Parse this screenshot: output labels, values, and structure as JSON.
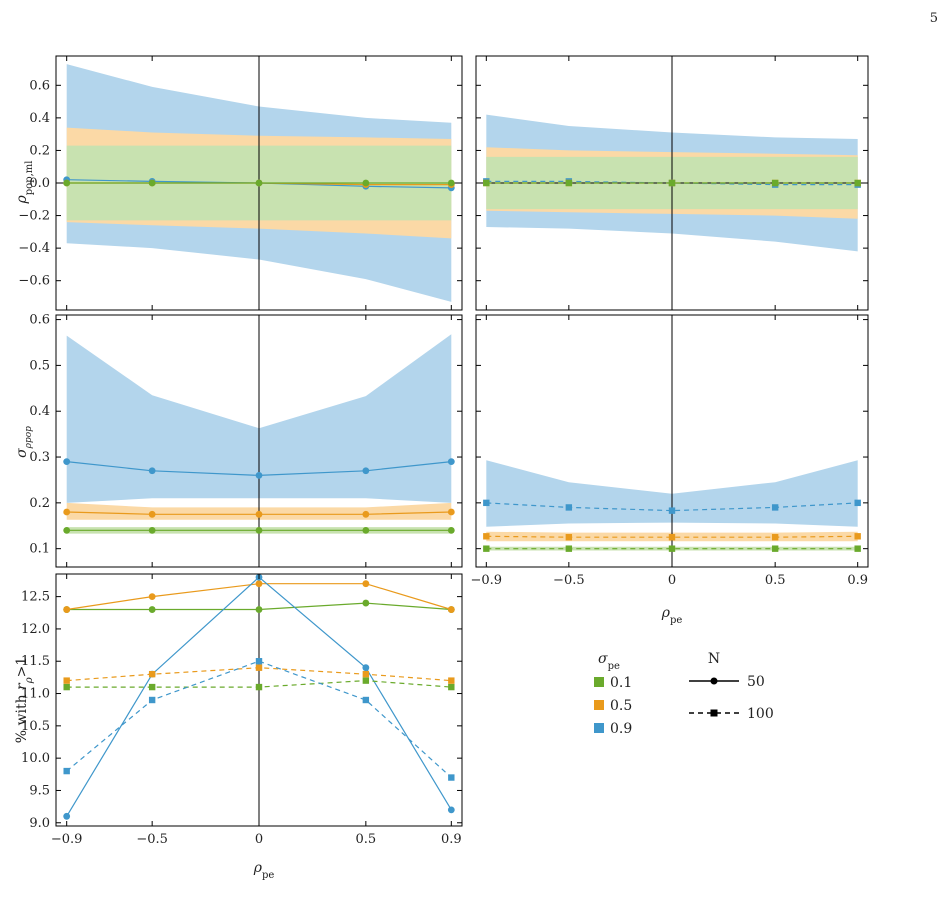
{
  "page_number": "5",
  "colors": {
    "0.1": "#6aaa2c",
    "0.5": "#e99a1c",
    "0.9": "#3f97cb",
    "band_0.1": "#c8e2b0",
    "band_0.5": "#fbd9a6",
    "band_0.9": "#b3d5ec"
  },
  "legend": {
    "sigma_title": "σ_pe",
    "sigma_title_main": "σ",
    "sigma_title_sub": "pe",
    "sigma_items": [
      {
        "key": "0.1",
        "label": "0.1"
      },
      {
        "key": "0.5",
        "label": "0.5"
      },
      {
        "key": "0.9",
        "label": "0.9"
      }
    ],
    "n_title": "N",
    "n_items": [
      {
        "style": "solid",
        "marker": "circle",
        "label": "50"
      },
      {
        "style": "dashed",
        "marker": "square",
        "label": "100"
      }
    ]
  },
  "chart_data": [
    {
      "id": "rho-N50",
      "type": "line",
      "ylabel": "ρ_pop,ml",
      "ylabel_main": "ρ",
      "ylabel_sub": "pop,ml",
      "x": [
        -0.9,
        -0.5,
        0,
        0.5,
        0.9
      ],
      "xlim": [
        -0.95,
        0.95
      ],
      "ylim": [
        -0.78,
        0.78
      ],
      "yticks": [
        -0.6,
        -0.4,
        -0.2,
        0.0,
        0.2,
        0.4,
        0.6
      ],
      "ytick_labels": [
        "−0.6",
        "−0.4",
        "−0.2",
        "0.0",
        "0.2",
        "0.4",
        "0.6"
      ],
      "hline": 0,
      "vline": 0,
      "series": [
        {
          "key": "0.9",
          "values": [
            0.02,
            0.01,
            0.0,
            -0.02,
            -0.03
          ],
          "lower": [
            -0.37,
            -0.4,
            -0.47,
            -0.59,
            -0.73
          ],
          "upper": [
            0.73,
            0.59,
            0.47,
            0.4,
            0.37
          ],
          "dash": "none",
          "marker": "circle"
        },
        {
          "key": "0.5",
          "values": [
            0.0,
            0.0,
            0.0,
            -0.01,
            -0.01
          ],
          "lower": [
            -0.24,
            -0.26,
            -0.28,
            -0.31,
            -0.34
          ],
          "upper": [
            0.34,
            0.31,
            0.29,
            0.28,
            0.27
          ],
          "dash": "none",
          "marker": "circle"
        },
        {
          "key": "0.1",
          "values": [
            0.0,
            0.0,
            0.0,
            0.0,
            0.0
          ],
          "lower": [
            -0.23,
            -0.23,
            -0.23,
            -0.23,
            -0.23
          ],
          "upper": [
            0.23,
            0.23,
            0.23,
            0.23,
            0.23
          ],
          "dash": "none",
          "marker": "circle"
        }
      ]
    },
    {
      "id": "rho-N100",
      "type": "line",
      "x": [
        -0.9,
        -0.5,
        0,
        0.5,
        0.9
      ],
      "xlim": [
        -0.95,
        0.95
      ],
      "ylim": [
        -0.78,
        0.78
      ],
      "hline": 0,
      "vline": 0,
      "series": [
        {
          "key": "0.9",
          "values": [
            0.01,
            0.01,
            0.0,
            -0.01,
            -0.01
          ],
          "lower": [
            -0.27,
            -0.28,
            -0.31,
            -0.36,
            -0.42
          ],
          "upper": [
            0.42,
            0.35,
            0.31,
            0.28,
            0.27
          ],
          "dash": "dashed",
          "marker": "square"
        },
        {
          "key": "0.5",
          "values": [
            0.0,
            0.0,
            0.0,
            0.0,
            0.0
          ],
          "lower": [
            -0.17,
            -0.18,
            -0.19,
            -0.2,
            -0.22
          ],
          "upper": [
            0.22,
            0.2,
            0.19,
            0.18,
            0.17
          ],
          "dash": "dashed",
          "marker": "square"
        },
        {
          "key": "0.1",
          "values": [
            0.0,
            0.0,
            0.0,
            0.0,
            0.0
          ],
          "lower": [
            -0.16,
            -0.16,
            -0.16,
            -0.16,
            -0.16
          ],
          "upper": [
            0.16,
            0.16,
            0.16,
            0.16,
            0.16
          ],
          "dash": "dashed",
          "marker": "square"
        }
      ]
    },
    {
      "id": "sigma-N50",
      "type": "line",
      "ylabel": "σ_ρpop",
      "ylabel_main": "σ",
      "ylabel_sub": "ρpop",
      "x": [
        -0.9,
        -0.5,
        0,
        0.5,
        0.9
      ],
      "xlim": [
        -0.95,
        0.95
      ],
      "ylim": [
        0.06,
        0.61
      ],
      "yticks": [
        0.1,
        0.2,
        0.3,
        0.4,
        0.5,
        0.6
      ],
      "ytick_labels": [
        "0.1",
        "0.2",
        "0.3",
        "0.4",
        "0.5",
        "0.6"
      ],
      "vline": 0,
      "series": [
        {
          "key": "0.9",
          "values": [
            0.29,
            0.27,
            0.26,
            0.27,
            0.29
          ],
          "lower": [
            0.2,
            0.21,
            0.21,
            0.21,
            0.2
          ],
          "upper": [
            0.565,
            0.435,
            0.363,
            0.433,
            0.568
          ],
          "dash": "none",
          "marker": "circle"
        },
        {
          "key": "0.5",
          "values": [
            0.18,
            0.175,
            0.175,
            0.175,
            0.18
          ],
          "lower": [
            0.163,
            0.163,
            0.163,
            0.163,
            0.163
          ],
          "upper": [
            0.2,
            0.19,
            0.19,
            0.19,
            0.2
          ],
          "dash": "none",
          "marker": "circle"
        },
        {
          "key": "0.1",
          "values": [
            0.14,
            0.14,
            0.14,
            0.14,
            0.14
          ],
          "lower": [
            0.133,
            0.133,
            0.133,
            0.133,
            0.133
          ],
          "upper": [
            0.147,
            0.147,
            0.147,
            0.147,
            0.147
          ],
          "dash": "none",
          "marker": "circle"
        }
      ]
    },
    {
      "id": "sigma-N100",
      "type": "line",
      "xlabel": "ρ_pe",
      "xlabel_main": "ρ",
      "xlabel_sub": "pe",
      "x": [
        -0.9,
        -0.5,
        0,
        0.5,
        0.9
      ],
      "xlim": [
        -0.95,
        0.95
      ],
      "ylim": [
        0.06,
        0.61
      ],
      "xticks": [
        -0.9,
        -0.5,
        0,
        0.5,
        0.9
      ],
      "xtick_labels": [
        "−0.9",
        "−0.5",
        "0",
        "0.5",
        "0.9"
      ],
      "vline": 0,
      "series": [
        {
          "key": "0.9",
          "values": [
            0.2,
            0.19,
            0.183,
            0.19,
            0.2
          ],
          "lower": [
            0.148,
            0.155,
            0.157,
            0.155,
            0.148
          ],
          "upper": [
            0.293,
            0.245,
            0.22,
            0.245,
            0.293
          ],
          "dash": "dashed",
          "marker": "square"
        },
        {
          "key": "0.5",
          "values": [
            0.127,
            0.125,
            0.125,
            0.125,
            0.127
          ],
          "lower": [
            0.116,
            0.116,
            0.116,
            0.116,
            0.116
          ],
          "upper": [
            0.137,
            0.135,
            0.135,
            0.135,
            0.137
          ],
          "dash": "dashed",
          "marker": "square"
        },
        {
          "key": "0.1",
          "values": [
            0.1,
            0.1,
            0.1,
            0.1,
            0.1
          ],
          "lower": [
            0.096,
            0.096,
            0.096,
            0.096,
            0.096
          ],
          "upper": [
            0.104,
            0.104,
            0.104,
            0.104,
            0.104
          ],
          "dash": "dashed",
          "marker": "square"
        }
      ]
    },
    {
      "id": "pct",
      "type": "line",
      "ylabel": "% with r_ρ>1",
      "ylabel_main": "% with ",
      "ylabel_r": "r",
      "ylabel_sub": "ρ",
      "ylabel_tail": ">1",
      "xlabel": "ρ_pe",
      "xlabel_main": "ρ",
      "xlabel_sub": "pe",
      "x": [
        -0.9,
        -0.5,
        0,
        0.5,
        0.9
      ],
      "xlim": [
        -0.95,
        0.95
      ],
      "ylim": [
        8.95,
        12.85
      ],
      "yticks": [
        9.0,
        9.5,
        10.0,
        10.5,
        11.0,
        11.5,
        12.0,
        12.5
      ],
      "ytick_labels": [
        "9.0",
        "9.5",
        "10.0",
        "10.5",
        "11.0",
        "11.5",
        "12.0",
        "12.5"
      ],
      "xticks": [
        -0.9,
        -0.5,
        0,
        0.5,
        0.9
      ],
      "xtick_labels": [
        "−0.9",
        "−0.5",
        "0",
        "0.5",
        "0.9"
      ],
      "vline": 0,
      "series": [
        {
          "key": "0.1",
          "N": "50",
          "values": [
            12.3,
            12.3,
            12.3,
            12.4,
            12.3
          ],
          "dash": "none",
          "marker": "circle"
        },
        {
          "key": "0.5",
          "N": "50",
          "values": [
            12.3,
            12.5,
            12.7,
            12.7,
            12.3
          ],
          "dash": "none",
          "marker": "circle"
        },
        {
          "key": "0.9",
          "N": "50",
          "values": [
            9.1,
            11.3,
            12.8,
            11.4,
            9.2
          ],
          "dash": "none",
          "marker": "circle"
        },
        {
          "key": "0.1",
          "N": "100",
          "values": [
            11.1,
            11.1,
            11.1,
            11.2,
            11.1
          ],
          "dash": "dashed",
          "marker": "square"
        },
        {
          "key": "0.5",
          "N": "100",
          "values": [
            11.2,
            11.3,
            11.4,
            11.3,
            11.2
          ],
          "dash": "dashed",
          "marker": "square"
        },
        {
          "key": "0.9",
          "N": "100",
          "values": [
            9.8,
            10.9,
            11.5,
            10.9,
            9.7
          ],
          "dash": "dashed",
          "marker": "square"
        }
      ]
    }
  ]
}
